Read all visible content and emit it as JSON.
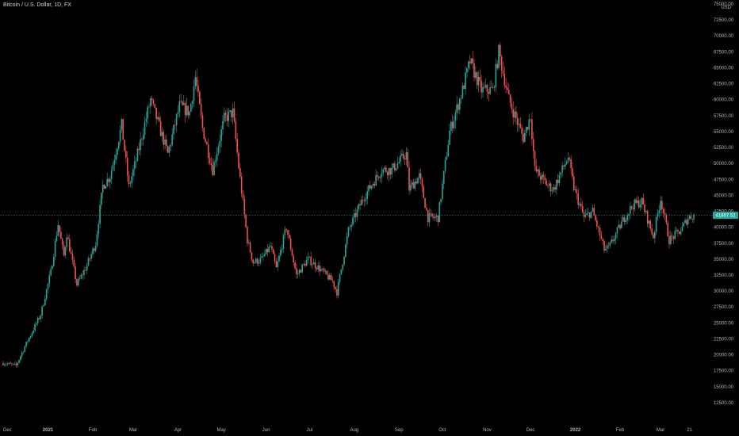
{
  "header": {
    "title": "Bitcoin / U.S. Dollar, 1D, FX"
  },
  "price_axis": {
    "currency": "USD"
  },
  "colors": {
    "up": "#26a69a",
    "down": "#ef5350",
    "background": "#000000",
    "text": "#b2b5be",
    "price_line": "#26a69a",
    "price_label_text": "#ffffff"
  },
  "chart_data": {
    "type": "candlestick",
    "title": "Bitcoin / U.S. Dollar, 1D, FX",
    "unit": "USD",
    "ylim": [
      11000,
      75000
    ],
    "grid": false,
    "y_ticks": [
      12500,
      15000,
      17500,
      20000,
      22500,
      25000,
      27500,
      30000,
      32500,
      35000,
      37500,
      40000,
      42500,
      45000,
      47500,
      50000,
      52500,
      55000,
      57500,
      60000,
      62500,
      65000,
      67500,
      70000,
      72500,
      75000
    ],
    "y_tick_labels": [
      "12500.00",
      "15000.00",
      "17500.00",
      "20000.00",
      "22500.00",
      "25000.00",
      "27500.00",
      "30000.00",
      "32500.00",
      "35000.00",
      "37500.00",
      "40000.00",
      "42500.00",
      "45000.00",
      "47500.00",
      "50000.00",
      "52500.00",
      "55000.00",
      "57500.00",
      "60000.00",
      "62500.00",
      "65000.00",
      "67500.00",
      "70000.00",
      "72500.00",
      "75000.00"
    ],
    "x_range": [
      "2020-12-01",
      "2022-03-24"
    ],
    "x_ticks": [
      {
        "date": "2020-12-01",
        "label": "Dec"
      },
      {
        "date": "2021-01-01",
        "label": "2021"
      },
      {
        "date": "2021-02-01",
        "label": "Feb"
      },
      {
        "date": "2021-03-01",
        "label": "Mar"
      },
      {
        "date": "2021-04-01",
        "label": "Apr"
      },
      {
        "date": "2021-05-01",
        "label": "May"
      },
      {
        "date": "2021-06-01",
        "label": "Jun"
      },
      {
        "date": "2021-07-01",
        "label": "Jul"
      },
      {
        "date": "2021-08-01",
        "label": "Aug"
      },
      {
        "date": "2021-09-01",
        "label": "Sep"
      },
      {
        "date": "2021-10-01",
        "label": "Oct"
      },
      {
        "date": "2021-11-01",
        "label": "Nov"
      },
      {
        "date": "2021-12-01",
        "label": "Dec"
      },
      {
        "date": "2022-01-01",
        "label": "2022"
      },
      {
        "date": "2022-02-01",
        "label": "Feb"
      },
      {
        "date": "2022-03-01",
        "label": "Mar"
      },
      {
        "date": "2022-03-21",
        "label": "21"
      }
    ],
    "last_price": 41867.52,
    "last_price_label": "41867.52",
    "closes": [
      {
        "date": "2020-12-01",
        "close": 18700
      },
      {
        "date": "2020-12-10",
        "close": 18300
      },
      {
        "date": "2020-12-16",
        "close": 21300
      },
      {
        "date": "2020-12-27",
        "close": 26300
      },
      {
        "date": "2021-01-03",
        "close": 33000
      },
      {
        "date": "2021-01-08",
        "close": 40500
      },
      {
        "date": "2021-01-12",
        "close": 35500
      },
      {
        "date": "2021-01-14",
        "close": 39000
      },
      {
        "date": "2021-01-21",
        "close": 31000
      },
      {
        "date": "2021-01-28",
        "close": 34000
      },
      {
        "date": "2021-02-03",
        "close": 37500
      },
      {
        "date": "2021-02-08",
        "close": 46500
      },
      {
        "date": "2021-02-13",
        "close": 48000
      },
      {
        "date": "2021-02-21",
        "close": 56000
      },
      {
        "date": "2021-02-26",
        "close": 46300
      },
      {
        "date": "2021-03-03",
        "close": 50500
      },
      {
        "date": "2021-03-13",
        "close": 60000
      },
      {
        "date": "2021-03-25",
        "close": 51500
      },
      {
        "date": "2021-04-02",
        "close": 59000
      },
      {
        "date": "2021-04-09",
        "close": 58000
      },
      {
        "date": "2021-04-13",
        "close": 63500
      },
      {
        "date": "2021-04-18",
        "close": 55500
      },
      {
        "date": "2021-04-25",
        "close": 49000
      },
      {
        "date": "2021-05-03",
        "close": 57000
      },
      {
        "date": "2021-05-09",
        "close": 58000
      },
      {
        "date": "2021-05-13",
        "close": 49500
      },
      {
        "date": "2021-05-19",
        "close": 38000
      },
      {
        "date": "2021-05-23",
        "close": 34500
      },
      {
        "date": "2021-05-29",
        "close": 35000
      },
      {
        "date": "2021-06-04",
        "close": 37000
      },
      {
        "date": "2021-06-08",
        "close": 33500
      },
      {
        "date": "2021-06-15",
        "close": 40000
      },
      {
        "date": "2021-06-22",
        "close": 32500
      },
      {
        "date": "2021-06-30",
        "close": 35000
      },
      {
        "date": "2021-07-08",
        "close": 33500
      },
      {
        "date": "2021-07-17",
        "close": 31500
      },
      {
        "date": "2021-07-20",
        "close": 29800
      },
      {
        "date": "2021-07-28",
        "close": 39500
      },
      {
        "date": "2021-08-07",
        "close": 44500
      },
      {
        "date": "2021-08-14",
        "close": 47000
      },
      {
        "date": "2021-08-20",
        "close": 49000
      },
      {
        "date": "2021-08-27",
        "close": 49000
      },
      {
        "date": "2021-09-06",
        "close": 51500
      },
      {
        "date": "2021-09-08",
        "close": 46000
      },
      {
        "date": "2021-09-15",
        "close": 48000
      },
      {
        "date": "2021-09-21",
        "close": 41500
      },
      {
        "date": "2021-09-28",
        "close": 41500
      },
      {
        "date": "2021-10-06",
        "close": 55000
      },
      {
        "date": "2021-10-15",
        "close": 61500
      },
      {
        "date": "2021-10-20",
        "close": 66000
      },
      {
        "date": "2021-10-28",
        "close": 61500
      },
      {
        "date": "2021-11-05",
        "close": 61500
      },
      {
        "date": "2021-11-09",
        "close": 67500
      },
      {
        "date": "2021-11-16",
        "close": 60000
      },
      {
        "date": "2021-11-26",
        "close": 54000
      },
      {
        "date": "2021-12-01",
        "close": 57500
      },
      {
        "date": "2021-12-04",
        "close": 49000
      },
      {
        "date": "2021-12-13",
        "close": 46500
      },
      {
        "date": "2021-12-17",
        "close": 46000
      },
      {
        "date": "2021-12-27",
        "close": 51000
      },
      {
        "date": "2021-12-31",
        "close": 46200
      },
      {
        "date": "2022-01-07",
        "close": 41500
      },
      {
        "date": "2022-01-13",
        "close": 42500
      },
      {
        "date": "2022-01-21",
        "close": 36500
      },
      {
        "date": "2022-01-24",
        "close": 36700
      },
      {
        "date": "2022-02-04",
        "close": 41500
      },
      {
        "date": "2022-02-10",
        "close": 43500
      },
      {
        "date": "2022-02-16",
        "close": 44000
      },
      {
        "date": "2022-02-24",
        "close": 38500
      },
      {
        "date": "2022-03-01",
        "close": 44500
      },
      {
        "date": "2022-03-07",
        "close": 38000
      },
      {
        "date": "2022-03-15",
        "close": 39500
      },
      {
        "date": "2022-03-20",
        "close": 41500
      },
      {
        "date": "2022-03-24",
        "close": 41867
      }
    ]
  }
}
